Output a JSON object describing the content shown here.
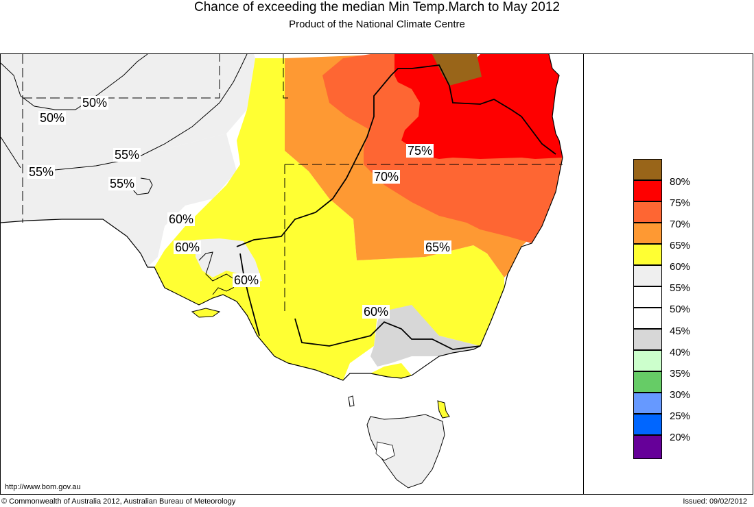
{
  "header": {
    "title": "Chance of exceeding the median Min Temp.March to May 2012",
    "subtitle": "Product of the National Climate Centre"
  },
  "map": {
    "contour_labels": [
      {
        "text": "50%"
      },
      {
        "text": "50%"
      },
      {
        "text": "55%"
      },
      {
        "text": "55%"
      },
      {
        "text": "55%"
      },
      {
        "text": "60%"
      },
      {
        "text": "60%"
      },
      {
        "text": "60%"
      },
      {
        "text": "60%"
      },
      {
        "text": "65%"
      },
      {
        "text": "70%"
      },
      {
        "text": "75%"
      }
    ],
    "zone_colors": {
      "c80": "#996519",
      "c75": "#fe0000",
      "c70": "#fe6633",
      "c65": "#fe9933",
      "c60": "#ffff33",
      "c55": "#efefef",
      "c45": "#d7d7d7"
    }
  },
  "legend": {
    "items": [
      {
        "label": "80%",
        "color": "#996519"
      },
      {
        "label": "75%",
        "color": "#fe0000"
      },
      {
        "label": "70%",
        "color": "#fe6633"
      },
      {
        "label": "65%",
        "color": "#fe9933"
      },
      {
        "label": "60%",
        "color": "#ffff33"
      },
      {
        "label": "55%",
        "color": "#efefef"
      },
      {
        "label": "50%",
        "color": "#ffffff"
      },
      {
        "label": "45%",
        "color": "#ffffff"
      },
      {
        "label": "40%",
        "color": "#d7d7d7"
      },
      {
        "label": "35%",
        "color": "#ccffcc"
      },
      {
        "label": "30%",
        "color": "#66cc66"
      },
      {
        "label": "25%",
        "color": "#6699ff"
      },
      {
        "label": "20%",
        "color": "#0066ff"
      },
      {
        "label": "",
        "color": "#660099"
      }
    ]
  },
  "footer": {
    "url": "http://www.bom.gov.au",
    "copyright": "© Commonwealth of Australia 2012, Australian Bureau of Meteorology",
    "issued": "Issued: 09/02/2012"
  }
}
